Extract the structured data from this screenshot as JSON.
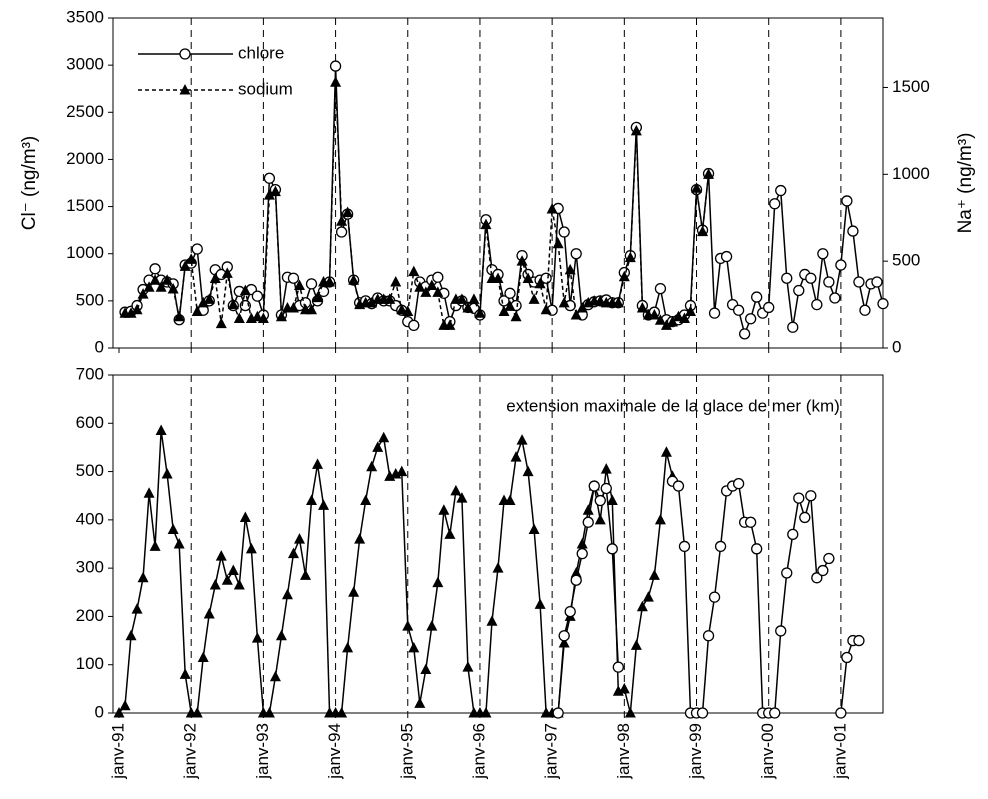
{
  "chart_data": [
    {
      "type": "line",
      "ylabel": "Cl⁻ (ng/m³)",
      "y2label": "Na⁺ (ng/m³)",
      "xlim": [
        "1990-12",
        "2001-08"
      ],
      "xticks": [
        "1991-01",
        "1992-01",
        "1993-01",
        "1994-01",
        "1995-01",
        "1996-01",
        "1997-01",
        "1998-01",
        "1999-01",
        "2000-01",
        "2001-01"
      ],
      "ylim": [
        0,
        3500
      ],
      "yticks": [
        0,
        500,
        1000,
        1500,
        2000,
        2500,
        3000,
        3500
      ],
      "y2lim": [
        0,
        1900
      ],
      "y2ticks": [
        0,
        500,
        1000,
        1500
      ],
      "legend": "upper left",
      "x": [
        "1991-02",
        "1991-03",
        "1991-04",
        "1991-05",
        "1991-06",
        "1991-07",
        "1991-08",
        "1991-09",
        "1991-10",
        "1991-11",
        "1991-12",
        "1992-01",
        "1992-02",
        "1992-03",
        "1992-04",
        "1992-05",
        "1992-06",
        "1992-07",
        "1992-08",
        "1992-09",
        "1992-10",
        "1992-11",
        "1992-12",
        "1993-01",
        "1993-02",
        "1993-03",
        "1993-04",
        "1993-05",
        "1993-06",
        "1993-07",
        "1993-08",
        "1993-09",
        "1993-10",
        "1993-11",
        "1993-12",
        "1994-01",
        "1994-02",
        "1994-03",
        "1994-04",
        "1994-05",
        "1994-06",
        "1994-07",
        "1994-08",
        "1994-09",
        "1994-10",
        "1994-11",
        "1994-12",
        "1995-01",
        "1995-02",
        "1995-03",
        "1995-04",
        "1995-05",
        "1995-06",
        "1995-07",
        "1995-08",
        "1995-09",
        "1995-10",
        "1995-11",
        "1995-12",
        "1996-01",
        "1996-02",
        "1996-03",
        "1996-04",
        "1996-05",
        "1996-06",
        "1996-07",
        "1996-08",
        "1996-09",
        "1996-10",
        "1996-11",
        "1996-12",
        "1997-01",
        "1997-02",
        "1997-03",
        "1997-04",
        "1997-05",
        "1997-06",
        "1997-07",
        "1997-08",
        "1997-09",
        "1997-10",
        "1997-11",
        "1997-12",
        "1998-01",
        "1998-02",
        "1998-03",
        "1998-04",
        "1998-05",
        "1998-06",
        "1998-07",
        "1998-08",
        "1998-09",
        "1998-10",
        "1998-11",
        "1998-12",
        "1999-01",
        "1999-02",
        "1999-03",
        "1999-04",
        "1999-05",
        "1999-06",
        "1999-07",
        "1999-08",
        "1999-09",
        "1999-10",
        "1999-11",
        "1999-12",
        "2000-01",
        "2000-02",
        "2000-03",
        "2000-04",
        "2000-05",
        "2000-06",
        "2000-07",
        "2000-08",
        "2000-09",
        "2000-10",
        "2000-11",
        "2000-12",
        "2001-01",
        "2001-02",
        "2001-03",
        "2001-04",
        "2001-05",
        "2001-06",
        "2001-07",
        "2001-08"
      ],
      "series": [
        {
          "name": "chlore",
          "color": "#000000",
          "marker": "circle",
          "dash": "solid",
          "values": [
            380,
            390,
            450,
            620,
            720,
            840,
            720,
            700,
            680,
            300,
            880,
            900,
            1050,
            400,
            500,
            830,
            780,
            860,
            450,
            600,
            450,
            620,
            550,
            350,
            1800,
            1680,
            350,
            750,
            740,
            450,
            480,
            680,
            500,
            600,
            700,
            2990,
            1230,
            1420,
            720,
            480,
            500,
            470,
            530,
            500,
            500,
            450,
            400,
            280,
            240,
            700,
            650,
            720,
            750,
            580,
            280,
            450,
            500,
            430,
            420,
            350,
            1360,
            830,
            780,
            500,
            580,
            450,
            980,
            780,
            700,
            720,
            740,
            400,
            1480,
            1230,
            450,
            1000,
            350,
            460,
            490,
            500,
            510,
            480,
            480,
            800,
            980,
            2340,
            450,
            350,
            380,
            630,
            300,
            280,
            300,
            350,
            450,
            1680,
            1250,
            1850,
            370,
            950,
            970,
            460,
            400,
            150,
            310,
            540,
            370,
            430,
            1530,
            1670,
            740,
            220,
            610,
            780,
            740,
            460,
            1000,
            700,
            530,
            880,
            1560,
            1240,
            700,
            400,
            680,
            700,
            470
          ]
        },
        {
          "name": "sodium",
          "color": "#000000",
          "marker": "triangle",
          "dash": "dashed",
          "axis": "y2",
          "values": [
            200,
            200,
            220,
            310,
            350,
            390,
            350,
            390,
            340,
            180,
            470,
            510,
            210,
            260,
            280,
            400,
            140,
            430,
            250,
            170,
            330,
            170,
            180,
            170,
            880,
            900,
            180,
            230,
            230,
            360,
            220,
            220,
            290,
            380,
            380,
            1530,
            730,
            780,
            390,
            250,
            260,
            260,
            280,
            280,
            280,
            380,
            220,
            210,
            440,
            350,
            320,
            360,
            320,
            130,
            130,
            280,
            280,
            230,
            280,
            200,
            710,
            400,
            400,
            210,
            240,
            180,
            500,
            400,
            280,
            370,
            220,
            800,
            600,
            260,
            450,
            190,
            230,
            260,
            270,
            270,
            260,
            260,
            260,
            410,
            520,
            1250,
            230,
            190,
            190,
            160,
            130,
            150,
            180,
            170,
            210,
            920,
            670,
            1000,
            null,
            null,
            null,
            null,
            null,
            null,
            null,
            null,
            null,
            null,
            null,
            null,
            null,
            null,
            null,
            null,
            null,
            null,
            null,
            null,
            null,
            null,
            null,
            null,
            null,
            null,
            null,
            null,
            null
          ]
        }
      ]
    },
    {
      "type": "line",
      "annotation": "extension maximale de la glace de mer (km)",
      "xlim": [
        "1990-12",
        "2001-08"
      ],
      "xticks": [
        {
          "value": "1991-01",
          "label": "janv-91"
        },
        {
          "value": "1992-01",
          "label": "janv-92"
        },
        {
          "value": "1993-01",
          "label": "janv-93"
        },
        {
          "value": "1994-01",
          "label": "janv-94"
        },
        {
          "value": "1995-01",
          "label": "janv-95"
        },
        {
          "value": "1996-01",
          "label": "janv-96"
        },
        {
          "value": "1997-01",
          "label": "janv-97"
        },
        {
          "value": "1998-01",
          "label": "janv-98"
        },
        {
          "value": "1999-01",
          "label": "janv-99"
        },
        {
          "value": "2000-01",
          "label": "janv-00"
        },
        {
          "value": "2001-01",
          "label": "janv-01"
        }
      ],
      "ylim": [
        0,
        700
      ],
      "yticks": [
        0,
        100,
        200,
        300,
        400,
        500,
        600,
        700
      ],
      "x": [
        "1991-01",
        "1991-02",
        "1991-03",
        "1991-04",
        "1991-05",
        "1991-06",
        "1991-07",
        "1991-08",
        "1991-09",
        "1991-10",
        "1991-11",
        "1991-12",
        "1992-01",
        "1992-02",
        "1992-03",
        "1992-04",
        "1992-05",
        "1992-06",
        "1992-07",
        "1992-08",
        "1992-09",
        "1992-10",
        "1992-11",
        "1992-12",
        "1993-01",
        "1993-02",
        "1993-03",
        "1993-04",
        "1993-05",
        "1993-06",
        "1993-07",
        "1993-08",
        "1993-09",
        "1993-10",
        "1993-11",
        "1993-12",
        "1994-01",
        "1994-02",
        "1994-03",
        "1994-04",
        "1994-05",
        "1994-06",
        "1994-07",
        "1994-08",
        "1994-09",
        "1994-10",
        "1994-11",
        "1994-12",
        "1995-01",
        "1995-02",
        "1995-03",
        "1995-04",
        "1995-05",
        "1995-06",
        "1995-07",
        "1995-08",
        "1995-09",
        "1995-10",
        "1995-11",
        "1995-12",
        "1996-01",
        "1996-02",
        "1996-03",
        "1996-04",
        "1996-05",
        "1996-06",
        "1996-07",
        "1996-08",
        "1996-09",
        "1996-10",
        "1996-11",
        "1996-12",
        "1997-01",
        "1997-02",
        "1997-03",
        "1997-04",
        "1997-05",
        "1997-06",
        "1997-07",
        "1997-08",
        "1997-09",
        "1997-10",
        "1997-11",
        "1997-12",
        "1998-01",
        "1998-02",
        "1998-03",
        "1998-04",
        "1998-05",
        "1998-06",
        "1998-07",
        "1998-08",
        "1998-09",
        "1998-10",
        "1998-11",
        "1998-12",
        "1999-01",
        "1999-02",
        "1999-03",
        "1999-04",
        "1999-05",
        "1999-06",
        "1999-07",
        "1999-08",
        "1999-09",
        "1999-10",
        "1999-11",
        "1999-12",
        "2000-01",
        "2000-02",
        "2000-03",
        "2000-04",
        "2000-05",
        "2000-06",
        "2000-07",
        "2000-08",
        "2000-09",
        "2000-10",
        "2000-11",
        "2000-12",
        "2001-01",
        "2001-02",
        "2001-03",
        "2001-04"
      ],
      "series": [
        {
          "color": "#000000",
          "marker": "triangle",
          "dash": "solid",
          "values": [
            0,
            15,
            160,
            215,
            280,
            455,
            345,
            585,
            495,
            380,
            350,
            80,
            0,
            0,
            115,
            205,
            265,
            325,
            275,
            295,
            265,
            405,
            340,
            155,
            0,
            0,
            75,
            160,
            245,
            330,
            360,
            285,
            440,
            515,
            430,
            0,
            0,
            0,
            135,
            250,
            360,
            440,
            510,
            550,
            570,
            490,
            495,
            500,
            180,
            135,
            20,
            90,
            180,
            270,
            420,
            370,
            460,
            445,
            95,
            0,
            0,
            0,
            190,
            300,
            440,
            440,
            530,
            565,
            500,
            380,
            225,
            0,
            0,
            0,
            145,
            200,
            290,
            350,
            420,
            470,
            400,
            505,
            440,
            45,
            50,
            0,
            140,
            220,
            240,
            285,
            400,
            540,
            490,
            null,
            null,
            null,
            null,
            null,
            null,
            null,
            null,
            null,
            null,
            null,
            null,
            null,
            null,
            null,
            null,
            null,
            null,
            null,
            null,
            null,
            null,
            null,
            null,
            null,
            null,
            null,
            null,
            null,
            null,
            null
          ]
        },
        {
          "color": "#000000",
          "marker": "circle",
          "dash": "solid",
          "values": [
            null,
            null,
            null,
            null,
            null,
            null,
            null,
            null,
            null,
            null,
            null,
            null,
            null,
            null,
            null,
            null,
            null,
            null,
            null,
            null,
            null,
            null,
            null,
            null,
            null,
            null,
            null,
            null,
            null,
            null,
            null,
            null,
            null,
            null,
            null,
            null,
            null,
            null,
            null,
            null,
            null,
            null,
            null,
            null,
            null,
            null,
            null,
            null,
            null,
            null,
            null,
            null,
            null,
            null,
            null,
            null,
            null,
            null,
            null,
            null,
            null,
            null,
            null,
            null,
            null,
            null,
            null,
            null,
            null,
            null,
            null,
            null,
            null,
            0,
            160,
            210,
            275,
            330,
            395,
            470,
            440,
            465,
            340,
            95,
            null,
            null,
            null,
            null,
            null,
            null,
            null,
            null,
            480,
            470,
            345,
            0,
            0,
            0,
            160,
            240,
            345,
            460,
            470,
            475,
            395,
            395,
            340,
            0,
            0,
            0,
            170,
            290,
            370,
            445,
            405,
            450,
            280,
            295,
            320,
            null,
            0,
            115,
            150,
            150
          ]
        }
      ]
    }
  ]
}
